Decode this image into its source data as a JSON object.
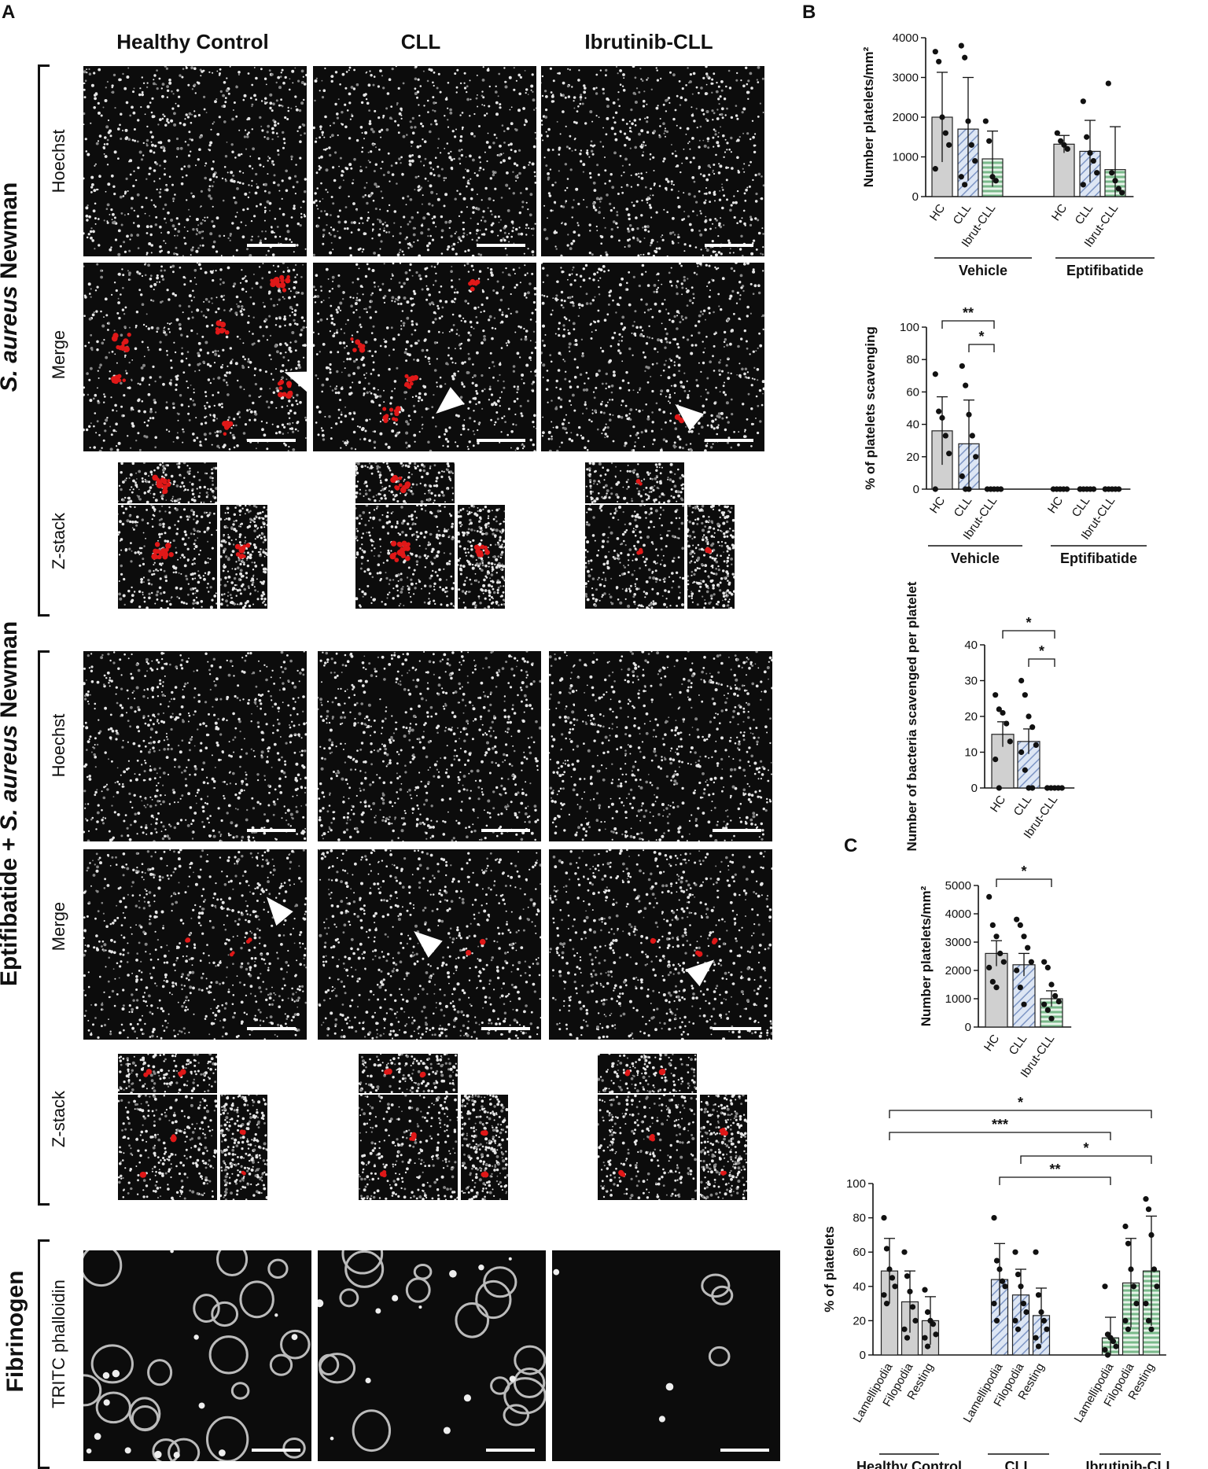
{
  "panels": {
    "A": "A",
    "B": "B",
    "C": "C"
  },
  "columns": [
    "Healthy Control",
    "CLL",
    "Ibrutinib-CLL"
  ],
  "section_labels": {
    "s_aureus": {
      "italic": "S. aureus",
      "rest": " Newman"
    },
    "eptifibatide": {
      "prefix": "Eptifibatide + ",
      "italic": "S. aureus",
      "rest": " Newman"
    },
    "fibrinogen": "Fibrinogen"
  },
  "row_labels": {
    "hoechst": "Hoechst",
    "merge": "Merge",
    "zstack": "Z-stack",
    "tritc": "TRITC phalloidin"
  },
  "chart_data": [
    {
      "type": "bar",
      "id": "B1",
      "ylabel": "Number platelets/mm²",
      "ylim": [
        0,
        4000
      ],
      "yticks": [
        0,
        1000,
        2000,
        3000,
        4000
      ],
      "groups": [
        "Vehicle",
        "Eptifibatide"
      ],
      "categories": [
        "HC",
        "CLL",
        "Ibrut-CLL",
        "HC",
        "CLL",
        "Ibrut-CLL"
      ],
      "values": [
        2000,
        1700,
        950,
        1320,
        1140,
        680
      ],
      "errors": [
        1130,
        1300,
        700,
        220,
        780,
        1080
      ],
      "points": [
        [
          3650,
          3400,
          2000,
          1600,
          1300,
          700
        ],
        [
          3800,
          3500,
          1900,
          1300,
          900,
          500,
          300
        ],
        [
          1900,
          1400,
          500,
          400
        ],
        [
          1600,
          1400,
          1300,
          1200
        ],
        [
          2400,
          1500,
          1100,
          900,
          600,
          300
        ],
        [
          2850,
          600,
          400,
          200,
          100
        ]
      ],
      "patterns": [
        "gray",
        "blue",
        "green",
        "gray",
        "blue",
        "green"
      ]
    },
    {
      "type": "bar",
      "id": "B2",
      "ylabel": "% of platelets scavenging",
      "ylim": [
        0,
        100
      ],
      "yticks": [
        0,
        20,
        40,
        60,
        80,
        100
      ],
      "groups": [
        "Vehicle",
        "Eptifibatide"
      ],
      "categories": [
        "HC",
        "CLL",
        "Ibrut-CLL",
        "HC",
        "CLL",
        "Ibrut-CLL"
      ],
      "values": [
        36,
        28,
        0,
        0,
        0,
        0
      ],
      "errors": [
        21,
        27,
        0,
        0,
        0,
        0
      ],
      "points": [
        [
          71,
          48,
          44,
          33,
          22,
          0
        ],
        [
          76,
          64,
          46,
          33,
          20,
          8,
          0,
          0
        ],
        [
          0,
          0,
          0,
          0,
          0
        ],
        [
          0,
          0,
          0,
          0,
          0
        ],
        [
          0,
          0,
          0,
          0,
          0,
          0
        ],
        [
          0,
          0,
          0,
          0,
          0,
          0
        ]
      ],
      "patterns": [
        "gray",
        "blue",
        "green",
        "gray",
        "blue",
        "green"
      ],
      "significance": [
        {
          "from": 0,
          "to": 2,
          "label": "**"
        },
        {
          "from": 1,
          "to": 2,
          "label": "*"
        }
      ]
    },
    {
      "type": "bar",
      "id": "B3",
      "ylabel": "Number of bacteria scavenged per platelet",
      "ylim": [
        0,
        40
      ],
      "yticks": [
        0,
        10,
        20,
        30,
        40
      ],
      "categories": [
        "HC",
        "CLL",
        "Ibrut-CLL"
      ],
      "values": [
        15,
        13,
        0
      ],
      "errors": [
        3.5,
        3.5,
        0
      ],
      "points": [
        [
          26,
          22,
          21,
          18,
          13,
          8,
          0
        ],
        [
          30,
          26,
          20,
          17,
          12,
          10,
          5,
          0,
          0
        ],
        [
          0,
          0,
          0,
          0,
          0,
          0
        ]
      ],
      "patterns": [
        "gray",
        "blue",
        "green"
      ],
      "significance": [
        {
          "from": 0,
          "to": 2,
          "label": "*"
        },
        {
          "from": 1,
          "to": 2,
          "label": "*"
        }
      ]
    },
    {
      "type": "bar",
      "id": "C1",
      "ylabel": "Number platelets/mm²",
      "ylim": [
        0,
        5000
      ],
      "yticks": [
        0,
        1000,
        2000,
        3000,
        4000,
        5000
      ],
      "categories": [
        "HC",
        "CLL",
        "Ibrut-CLL"
      ],
      "values": [
        2600,
        2200,
        1000
      ],
      "errors": [
        450,
        400,
        280
      ],
      "points": [
        [
          4600,
          3600,
          3200,
          2600,
          2300,
          2100,
          1600,
          1400
        ],
        [
          3800,
          3600,
          3200,
          2800,
          2300,
          2000,
          1400,
          800
        ],
        [
          2300,
          2100,
          1500,
          1100,
          900,
          800,
          600,
          300
        ]
      ],
      "patterns": [
        "gray",
        "blue",
        "green"
      ],
      "significance": [
        {
          "from": 0,
          "to": 2,
          "label": "*"
        }
      ]
    },
    {
      "type": "bar",
      "id": "C2",
      "ylabel": "% of platelets",
      "ylim": [
        0,
        100
      ],
      "yticks": [
        0,
        20,
        40,
        60,
        80,
        100
      ],
      "groups": [
        "Healthy Control",
        "CLL",
        "Ibrutinib-CLL"
      ],
      "categories": [
        "Lamellipodia",
        "Filopodia",
        "Resting",
        "Lamellipodia",
        "Filopodia",
        "Resting",
        "Lamellipodia",
        "Filopodia",
        "Resting"
      ],
      "values": [
        49,
        31,
        20,
        44,
        35,
        23,
        10,
        42,
        49
      ],
      "errors": [
        19,
        18,
        14,
        21,
        15,
        16,
        12,
        26,
        32
      ],
      "points": [
        [
          80,
          62,
          50,
          45,
          40,
          35,
          30
        ],
        [
          60,
          46,
          37,
          28,
          20,
          15,
          10
        ],
        [
          38,
          25,
          20,
          18,
          12,
          10,
          5
        ],
        [
          80,
          55,
          50,
          43,
          40,
          30,
          20
        ],
        [
          60,
          47,
          40,
          30,
          25,
          20,
          15
        ],
        [
          60,
          35,
          25,
          20,
          15,
          10,
          5
        ],
        [
          40,
          12,
          10,
          8,
          5,
          3,
          0
        ],
        [
          75,
          65,
          50,
          40,
          30,
          20,
          15
        ],
        [
          91,
          85,
          70,
          50,
          40,
          30,
          20,
          15
        ]
      ],
      "patterns": [
        "gray",
        "gray",
        "gray",
        "blue",
        "blue",
        "blue",
        "green",
        "green",
        "green"
      ],
      "significance": [
        {
          "from": 0,
          "to": 8,
          "label": "*"
        },
        {
          "from": 0,
          "to": 6,
          "label": "***"
        },
        {
          "from": 4,
          "to": 8,
          "label": "*"
        },
        {
          "from": 3,
          "to": 6,
          "label": "**"
        }
      ]
    }
  ]
}
